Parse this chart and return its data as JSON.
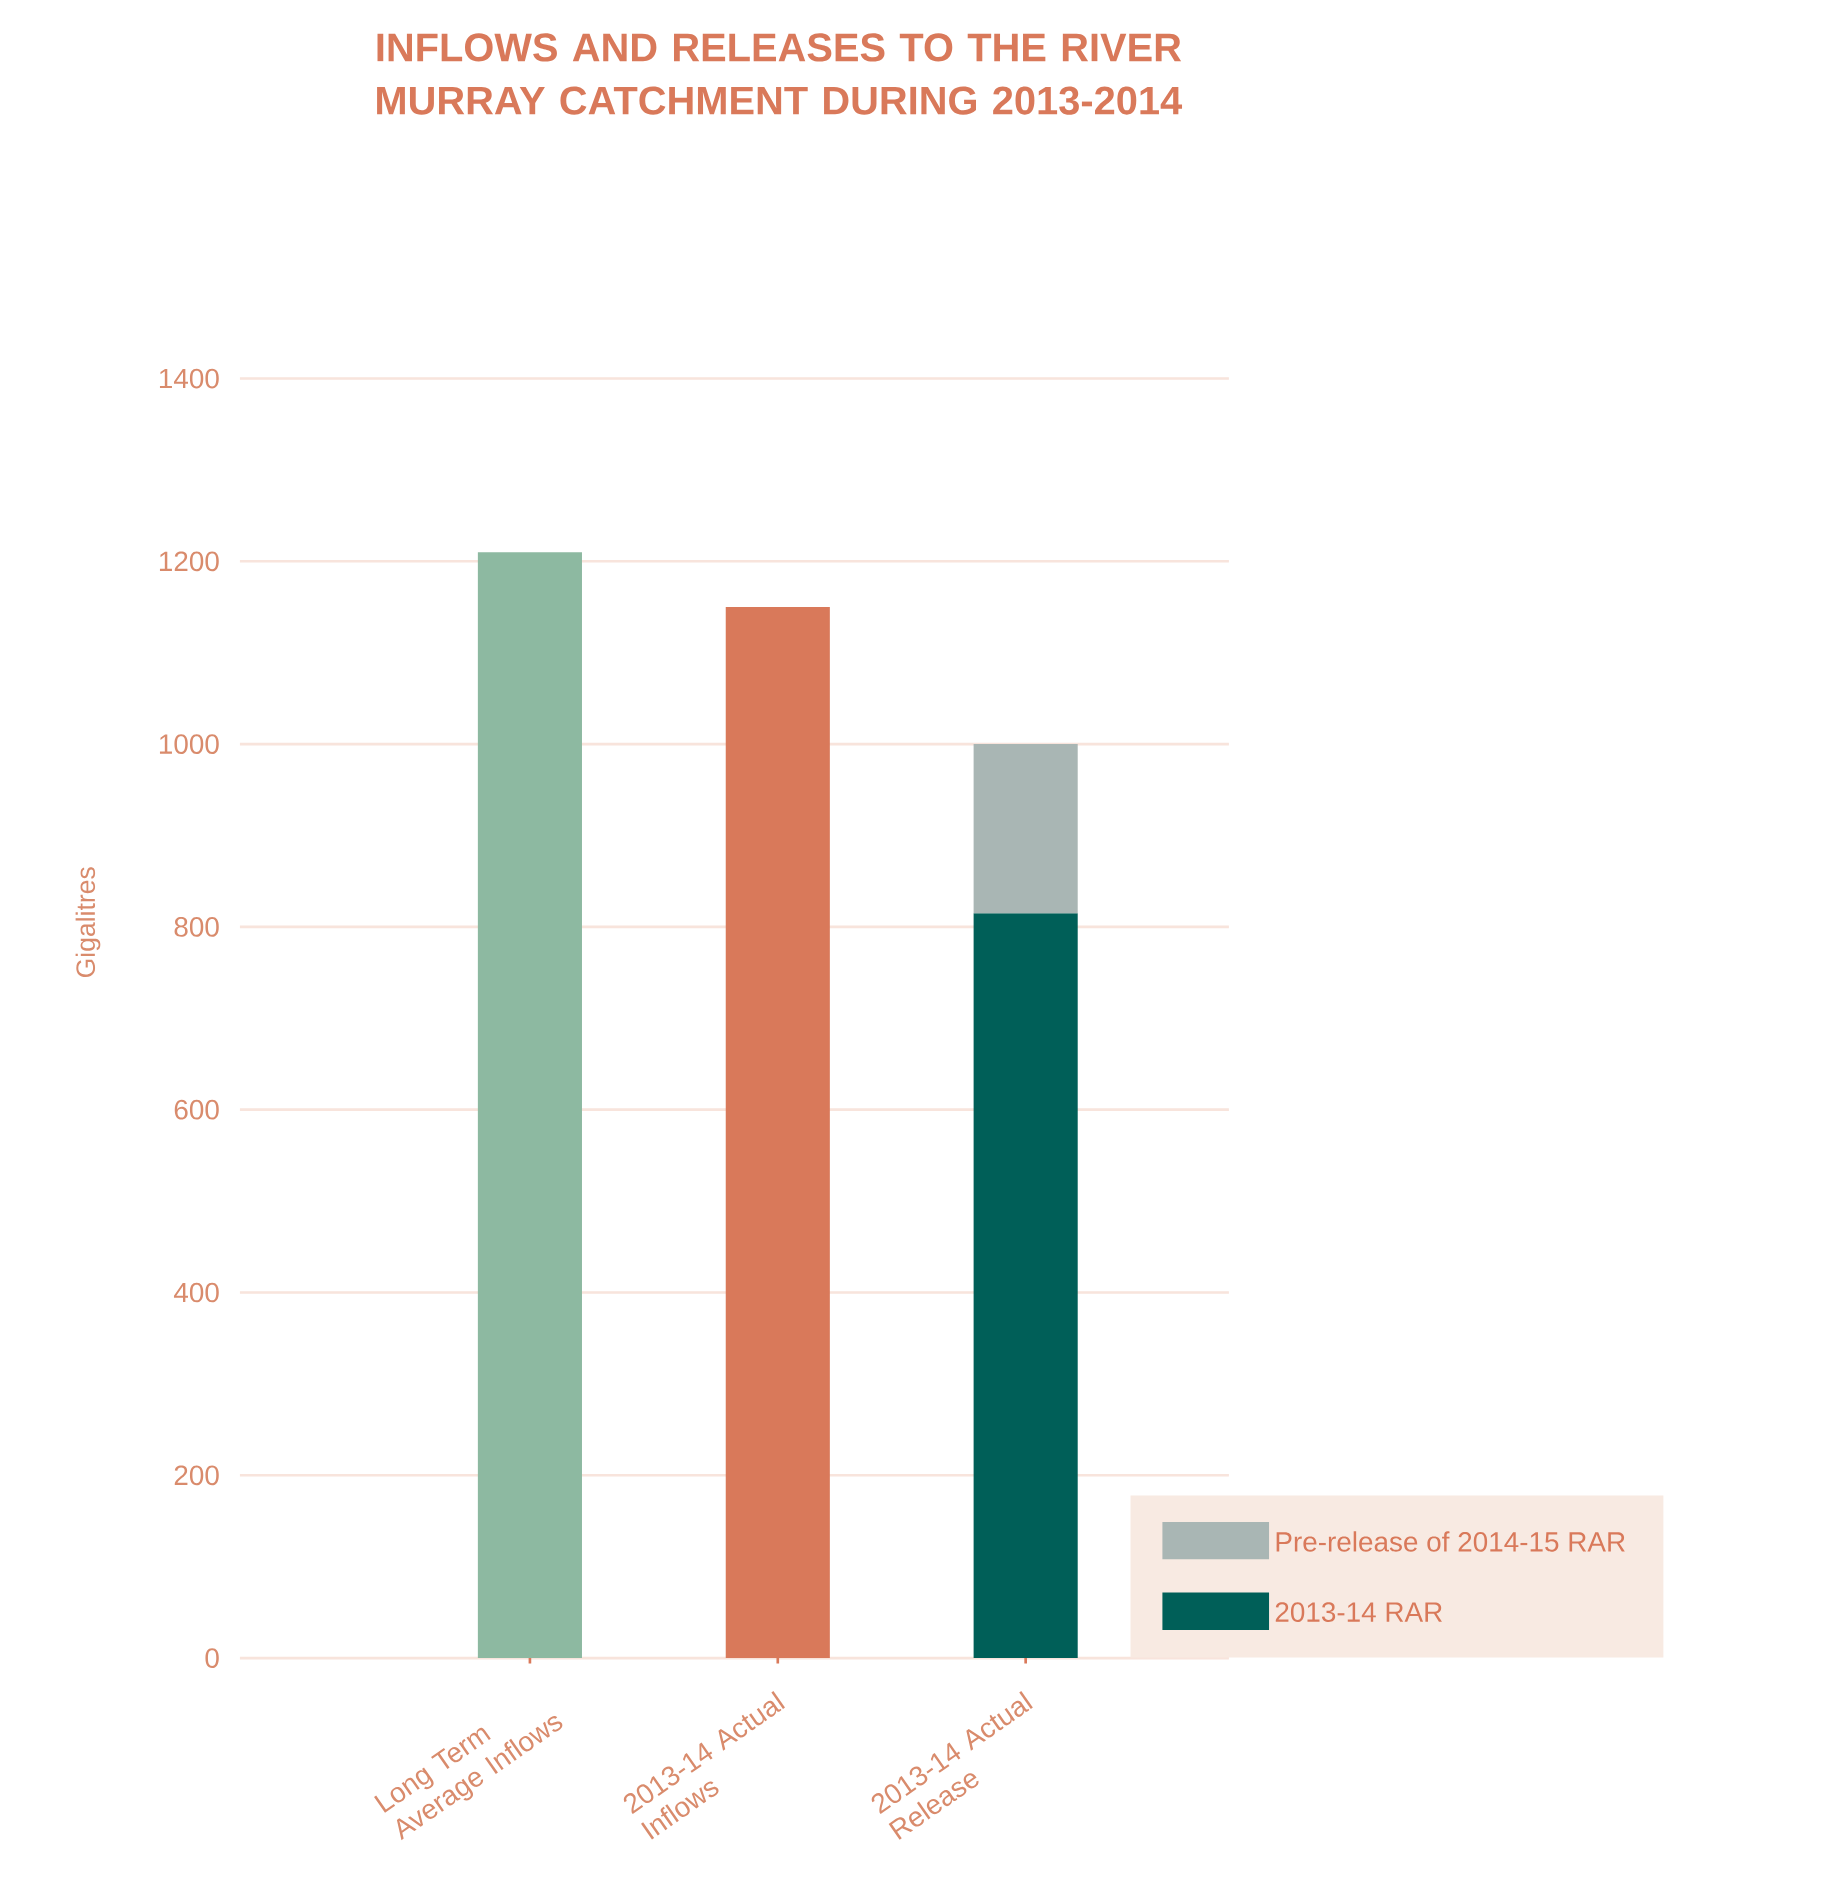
{
  "chart_data": {
    "type": "bar",
    "title": "INFLOWS AND RELEASES TO THE RIVER MURRAY CATCHMENT DURING 2013-2014",
    "ylabel": "Gigalitres",
    "categories": [
      "Long Term Average Inflows",
      "2013-14 Actual Inflows",
      "2013-14 Actual Release"
    ],
    "stacked": true,
    "series": [
      {
        "name": "2013-14 RAR",
        "color": "#005f58",
        "colors": [
          "#8db9a1",
          "#d9795a",
          "#005f58"
        ],
        "values": [
          1210,
          1150,
          815
        ]
      },
      {
        "name": "Pre-release of 2014-15 RAR",
        "color": "#a9b6b4",
        "values": [
          null,
          null,
          185
        ]
      }
    ],
    "ylim": [
      0,
      1400
    ],
    "yticks": [
      0,
      200,
      400,
      600,
      800,
      1000,
      1200,
      1400
    ],
    "grid": "y",
    "legend": "bottom right"
  }
}
